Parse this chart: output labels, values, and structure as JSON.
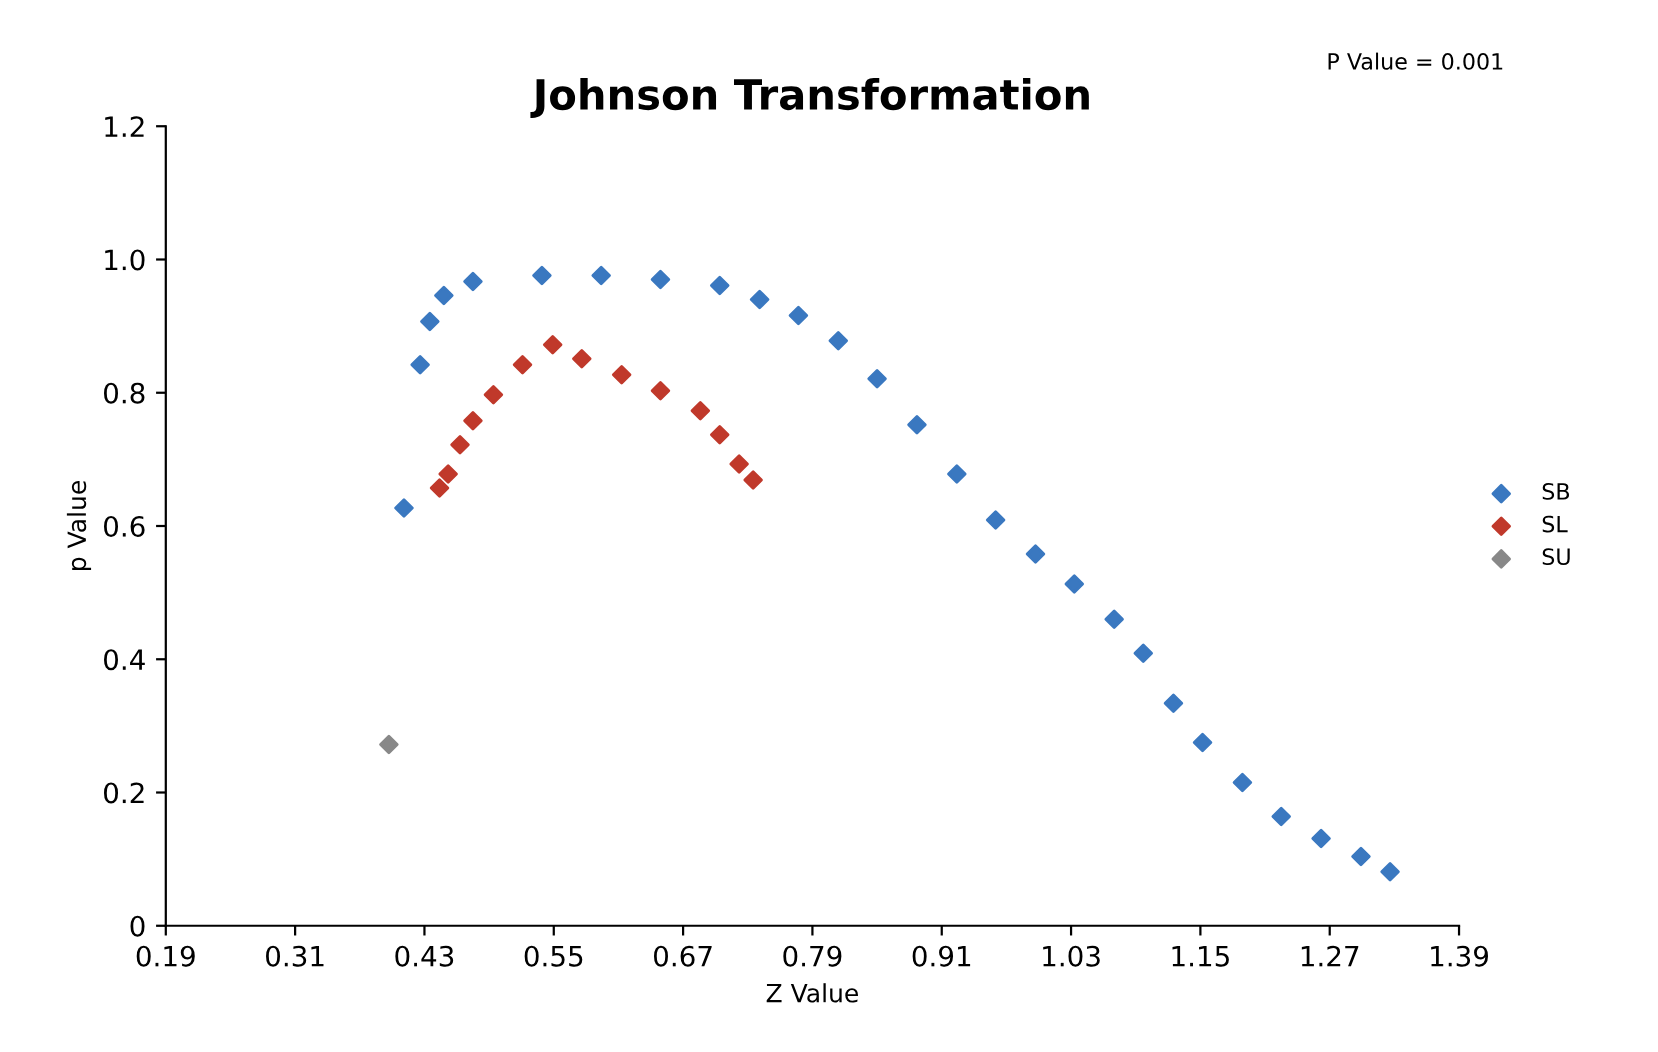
{
  "chart_data": {
    "type": "scatter",
    "title": "Johnson Transformation",
    "xlabel": "Z Value",
    "ylabel": "p Value",
    "annotations": [
      "P Value = 0.001"
    ],
    "xlim": [
      0.19,
      1.39
    ],
    "xticks": [
      0.19,
      0.31,
      0.43,
      0.55,
      0.67,
      0.79,
      0.91,
      1.03,
      1.15,
      1.27,
      1.39
    ],
    "ylim": [
      0,
      1.2
    ],
    "yticks": [
      0,
      0.2,
      0.4,
      0.6,
      0.8,
      {
        "value": 1,
        "label": "1.0"
      },
      1.2
    ],
    "grid": false,
    "legend": "right",
    "marker": "diamond",
    "series": [
      {
        "name": "SB",
        "color": "#3a78c0",
        "x": [
          0.411,
          0.426,
          0.435,
          0.448,
          0.475,
          0.539,
          0.594,
          0.649,
          0.704,
          0.741,
          0.777,
          0.814,
          0.85,
          0.887,
          0.924,
          0.96,
          0.997,
          1.033,
          1.07,
          1.097,
          1.125,
          1.152,
          1.189,
          1.225,
          1.262,
          1.299,
          1.326
        ],
        "values": [
          0.627,
          0.842,
          0.907,
          0.946,
          0.967,
          0.976,
          0.976,
          0.97,
          0.961,
          0.94,
          0.916,
          0.878,
          0.821,
          0.752,
          0.678,
          0.609,
          0.558,
          0.513,
          0.46,
          0.409,
          0.334,
          0.275,
          0.215,
          0.164,
          0.131,
          0.104,
          0.081
        ]
      },
      {
        "name": "SL",
        "color": "#c0392b",
        "x": [
          0.444,
          0.452,
          0.463,
          0.475,
          0.494,
          0.521,
          0.549,
          0.576,
          0.613,
          0.649,
          0.686,
          0.704,
          0.722,
          0.735
        ],
        "values": [
          0.657,
          0.678,
          0.722,
          0.758,
          0.797,
          0.842,
          0.872,
          0.851,
          0.827,
          0.803,
          0.773,
          0.737,
          0.693,
          0.669
        ]
      },
      {
        "name": "SU",
        "color": "#888888",
        "x": [
          0.397
        ],
        "values": [
          0.272
        ]
      }
    ]
  }
}
